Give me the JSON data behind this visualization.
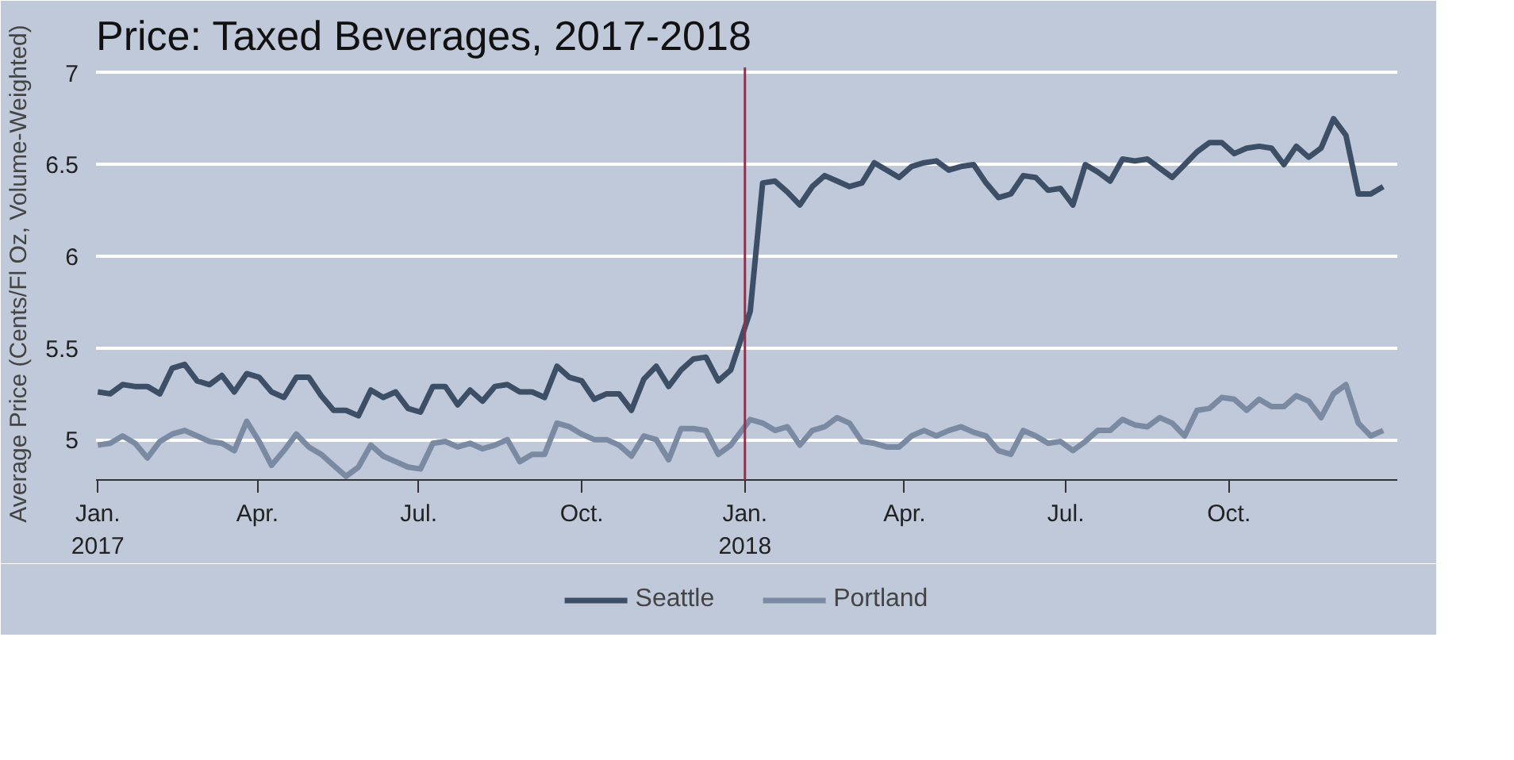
{
  "chart_data": {
    "type": "line",
    "title": "Price: Taxed Beverages, 2017-2018",
    "ylabel": "Average Price (Cents/Fl Oz, Volume-Weighted)",
    "x": [
      "2017-01-01",
      "2017-01-08",
      "2017-01-15",
      "2017-01-22",
      "2017-01-29",
      "2017-02-05",
      "2017-02-12",
      "2017-02-19",
      "2017-02-26",
      "2017-03-05",
      "2017-03-12",
      "2017-03-19",
      "2017-03-26",
      "2017-04-02",
      "2017-04-09",
      "2017-04-16",
      "2017-04-23",
      "2017-04-30",
      "2017-05-07",
      "2017-05-14",
      "2017-05-21",
      "2017-05-28",
      "2017-06-04",
      "2017-06-11",
      "2017-06-18",
      "2017-06-25",
      "2017-07-02",
      "2017-07-09",
      "2017-07-16",
      "2017-07-23",
      "2017-07-30",
      "2017-08-06",
      "2017-08-13",
      "2017-08-20",
      "2017-08-27",
      "2017-09-03",
      "2017-09-10",
      "2017-09-17",
      "2017-09-24",
      "2017-10-01",
      "2017-10-08",
      "2017-10-15",
      "2017-10-22",
      "2017-10-29",
      "2017-11-05",
      "2017-11-12",
      "2017-11-19",
      "2017-11-26",
      "2017-12-03",
      "2017-12-10",
      "2017-12-17",
      "2017-12-24",
      "2018-01-04",
      "2018-01-11",
      "2018-01-18",
      "2018-01-25",
      "2018-02-01",
      "2018-02-08",
      "2018-02-15",
      "2018-02-22",
      "2018-03-01",
      "2018-03-08",
      "2018-03-15",
      "2018-03-22",
      "2018-03-29",
      "2018-04-05",
      "2018-04-12",
      "2018-04-19",
      "2018-04-26",
      "2018-05-03",
      "2018-05-10",
      "2018-05-17",
      "2018-05-24",
      "2018-05-31",
      "2018-06-07",
      "2018-06-14",
      "2018-06-21",
      "2018-06-28",
      "2018-07-05",
      "2018-07-12",
      "2018-07-19",
      "2018-07-26",
      "2018-08-02",
      "2018-08-09",
      "2018-08-16",
      "2018-08-23",
      "2018-08-30",
      "2018-09-06",
      "2018-09-13",
      "2018-09-20",
      "2018-09-27",
      "2018-10-04",
      "2018-10-11",
      "2018-10-18",
      "2018-10-25",
      "2018-11-01",
      "2018-11-08",
      "2018-11-15",
      "2018-11-22",
      "2018-11-29",
      "2018-12-06",
      "2018-12-13",
      "2018-12-20",
      "2018-12-27"
    ],
    "series": [
      {
        "name": "Seattle",
        "color": "#3d4f66",
        "values": [
          5.26,
          5.25,
          5.3,
          5.29,
          5.29,
          5.25,
          5.39,
          5.41,
          5.32,
          5.3,
          5.35,
          5.26,
          5.36,
          5.34,
          5.26,
          5.23,
          5.34,
          5.34,
          5.24,
          5.16,
          5.16,
          5.13,
          5.27,
          5.23,
          5.26,
          5.17,
          5.15,
          5.29,
          5.29,
          5.19,
          5.27,
          5.21,
          5.29,
          5.3,
          5.26,
          5.26,
          5.23,
          5.4,
          5.34,
          5.32,
          5.22,
          5.25,
          5.25,
          5.16,
          5.33,
          5.4,
          5.29,
          5.38,
          5.44,
          5.45,
          5.32,
          5.38,
          5.7,
          6.4,
          6.41,
          6.35,
          6.28,
          6.38,
          6.44,
          6.41,
          6.38,
          6.4,
          6.51,
          6.47,
          6.43,
          6.49,
          6.51,
          6.52,
          6.47,
          6.49,
          6.5,
          6.4,
          6.32,
          6.34,
          6.44,
          6.43,
          6.36,
          6.37,
          6.28,
          6.5,
          6.46,
          6.41,
          6.53,
          6.52,
          6.53,
          6.48,
          6.43,
          6.5,
          6.57,
          6.62,
          6.62,
          6.56,
          6.59,
          6.6,
          6.59,
          6.5,
          6.6,
          6.54,
          6.59,
          6.75,
          6.66,
          6.34,
          6.34,
          6.38
        ]
      },
      {
        "name": "Portland",
        "color": "#7a8aa3",
        "values": [
          4.97,
          4.98,
          5.02,
          4.98,
          4.9,
          4.99,
          5.03,
          5.05,
          5.02,
          4.99,
          4.98,
          4.94,
          5.1,
          4.99,
          4.86,
          4.94,
          5.03,
          4.96,
          4.92,
          4.86,
          4.8,
          4.85,
          4.97,
          4.91,
          4.88,
          4.85,
          4.84,
          4.98,
          4.99,
          4.96,
          4.98,
          4.95,
          4.97,
          5.0,
          4.88,
          4.92,
          4.92,
          5.09,
          5.07,
          5.03,
          5.0,
          5.0,
          4.97,
          4.91,
          5.02,
          5.0,
          4.89,
          5.06,
          5.06,
          5.05,
          4.92,
          4.97,
          5.11,
          5.09,
          5.05,
          5.07,
          4.97,
          5.05,
          5.07,
          5.12,
          5.09,
          4.99,
          4.98,
          4.96,
          4.96,
          5.02,
          5.05,
          5.02,
          5.05,
          5.07,
          5.04,
          5.02,
          4.94,
          4.92,
          5.05,
          5.02,
          4.98,
          4.99,
          4.94,
          4.99,
          5.05,
          5.05,
          5.11,
          5.08,
          5.07,
          5.12,
          5.09,
          5.02,
          5.16,
          5.17,
          5.23,
          5.22,
          5.16,
          5.22,
          5.18,
          5.18,
          5.24,
          5.21,
          5.12,
          5.25,
          5.3,
          5.09,
          5.02,
          5.05
        ]
      }
    ],
    "xlim": [
      "2016-12-31",
      "2019-01-04"
    ],
    "xticks": [
      {
        "value": "2017-01-01",
        "label": "Jan.\n2017"
      },
      {
        "value": "2017-04-01",
        "label": "Apr."
      },
      {
        "value": "2017-07-01",
        "label": "Jul."
      },
      {
        "value": "2017-10-01",
        "label": "Oct."
      },
      {
        "value": "2018-01-01",
        "label": "Jan.\n2018"
      },
      {
        "value": "2018-04-01",
        "label": "Apr."
      },
      {
        "value": "2018-07-01",
        "label": "Jul."
      },
      {
        "value": "2018-10-01",
        "label": "Oct."
      }
    ],
    "ylim": [
      4.78,
      7.03
    ],
    "yticks": [
      5,
      5.5,
      6,
      6.5,
      7
    ],
    "grid": "y",
    "legend": "bottom",
    "line_style": "solid",
    "ref_lines": [
      {
        "axis": "x",
        "value": "2018-01-01",
        "color": "#a3284a"
      }
    ]
  }
}
